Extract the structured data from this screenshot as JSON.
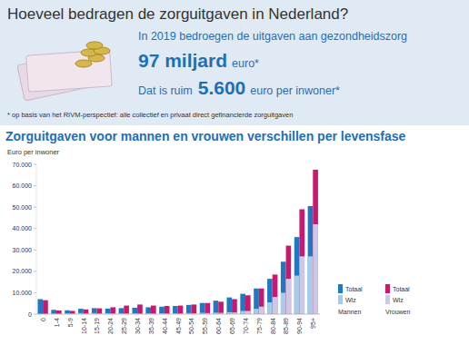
{
  "header": {
    "title": "Hoeveel bedragen de zorguitgaven in Nederland?",
    "intro": "In 2019 bedroegen de uitgaven aan gezondheidszorg",
    "amount": "97 miljard",
    "amount_unit": "euro*",
    "per_person_intro": "Dat is ruim",
    "per_person": "5.600",
    "per_person_unit": "euro per inwoner*",
    "footnote": "* op basis van het RIVM-perspectief: alle collectief en privaat direct gefinancierde zorguitgaven"
  },
  "chart_data": {
    "type": "bar",
    "title": "Zorguitgaven voor mannen en vrouwen verschillen per levensfase",
    "y_label": "Euro per inwoner",
    "categories": [
      "0",
      "1-4",
      "5-9",
      "10-14",
      "15-19",
      "20-24",
      "25-29",
      "30-34",
      "35-39",
      "40-44",
      "45-49",
      "50-54",
      "55-59",
      "60-64",
      "65-69",
      "70-74",
      "75-79",
      "80-84",
      "85-89",
      "90-94",
      "95+"
    ],
    "series": [
      {
        "name": "Totaal",
        "group": "Mannen",
        "color": "#1f78c1",
        "values": [
          7000,
          2000,
          1800,
          2500,
          2800,
          2600,
          2800,
          3000,
          3200,
          3500,
          3800,
          4300,
          5200,
          6300,
          7800,
          9500,
          12000,
          16500,
          24500,
          36000,
          50500
        ]
      },
      {
        "name": "Wlz",
        "group": "Mannen",
        "color": "#a9cbe8",
        "values": [
          200,
          300,
          400,
          500,
          500,
          400,
          400,
          400,
          400,
          400,
          400,
          500,
          600,
          700,
          900,
          1500,
          2500,
          5500,
          10000,
          18000,
          27000
        ]
      },
      {
        "name": "Totaal",
        "group": "Vrouwen",
        "color": "#c8196e",
        "values": [
          6500,
          1700,
          1500,
          2200,
          2700,
          3200,
          4000,
          4500,
          4000,
          3800,
          4000,
          4500,
          5200,
          5800,
          7000,
          8800,
          12000,
          18500,
          32000,
          49000,
          67500
        ]
      },
      {
        "name": "Wlz",
        "group": "Vrouwen",
        "color": "#cdc8e6",
        "values": [
          200,
          200,
          300,
          300,
          300,
          300,
          300,
          300,
          300,
          300,
          300,
          400,
          500,
          600,
          800,
          1500,
          3500,
          8000,
          16500,
          27000,
          42000
        ]
      }
    ],
    "stacked": false,
    "grid": false,
    "legend": "bottom-right",
    "ylim": [
      0,
      70000
    ],
    "yticks": [
      0,
      {
        "value": 10000,
        "label": "10.000"
      },
      {
        "value": 20000,
        "label": "20.000"
      },
      {
        "value": 30000,
        "label": "30.000"
      },
      {
        "value": 40000,
        "label": "40.000"
      },
      {
        "value": 50000,
        "label": "50.000"
      },
      {
        "value": 60000,
        "label": "60.000"
      },
      {
        "value": 70000,
        "label": "70.000"
      }
    ]
  }
}
